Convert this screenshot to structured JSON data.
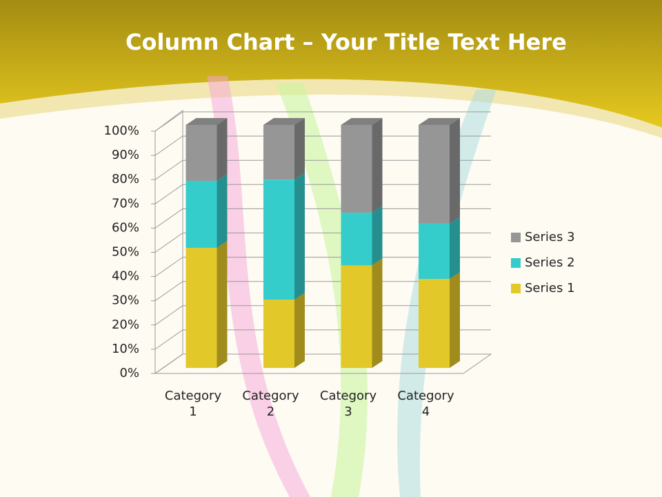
{
  "chart_data": {
    "type": "stacked_bar_3d",
    "title_bold": "Column Chart",
    "title_rest": "– Your Title Text Here",
    "categories": [
      "Category 1",
      "Category 2",
      "Category 3",
      "Category 4"
    ],
    "series": [
      {
        "name": "Series 1",
        "color": "#e3c82a",
        "values": [
          49.4,
          28.1,
          42.2,
          36.6
        ]
      },
      {
        "name": "Series 2",
        "color": "#35cccc",
        "values": [
          27.6,
          49.4,
          21.7,
          22.8
        ]
      },
      {
        "name": "Series 3",
        "color": "#969696",
        "values": [
          23.0,
          22.5,
          36.1,
          40.6
        ]
      }
    ],
    "ylim": [
      0,
      100
    ],
    "yticks": [
      {
        "value": 0,
        "label": "0%"
      },
      {
        "value": 10,
        "label": "10%"
      },
      {
        "value": 20,
        "label": "20%"
      },
      {
        "value": 30,
        "label": "30%"
      },
      {
        "value": 40,
        "label": "40%"
      },
      {
        "value": 50,
        "label": "50%"
      },
      {
        "value": 60,
        "label": "60%"
      },
      {
        "value": 70,
        "label": "70%"
      },
      {
        "value": 80,
        "label": "80%"
      },
      {
        "value": 90,
        "label": "90%"
      },
      {
        "value": 100,
        "label": "100%"
      }
    ],
    "grid": true,
    "legend": "right"
  }
}
